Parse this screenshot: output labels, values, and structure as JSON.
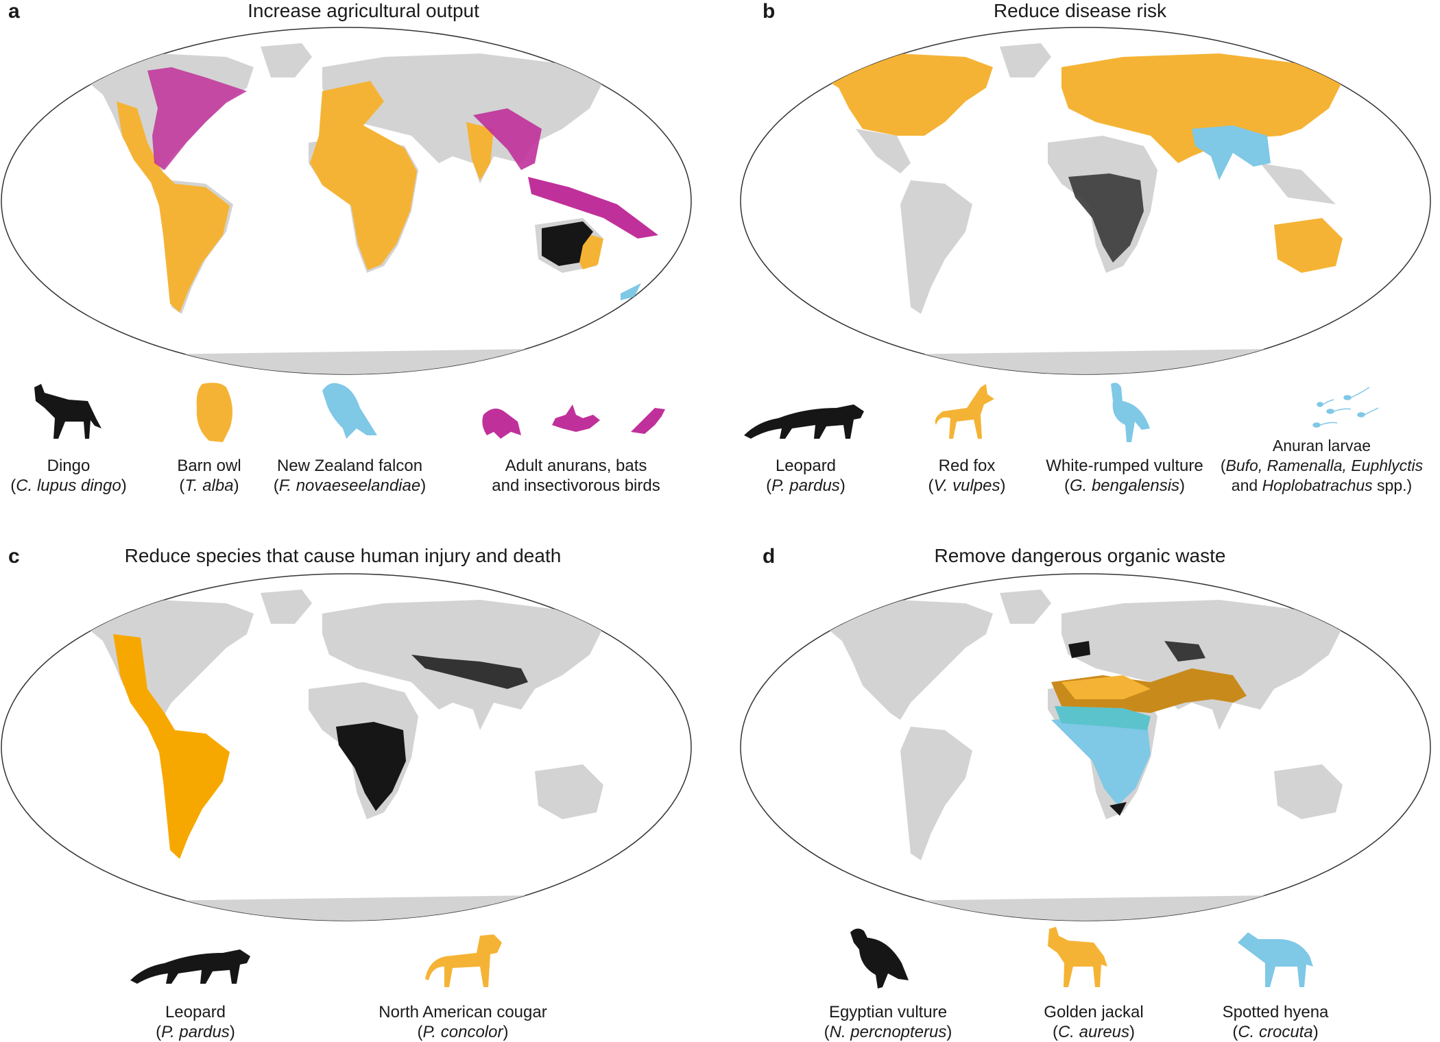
{
  "colors": {
    "land": "#d3d3d3",
    "orange": "#f5b335",
    "magenta": "#c0309a",
    "black": "#161616",
    "blue": "#7fc8e6",
    "darkgold": "#c98a1c",
    "teal": "#5bc3cc"
  },
  "panels": [
    {
      "letter": "a",
      "title": "Increase agricultural output",
      "legend": [
        {
          "icon": "dingo-icon",
          "color": "black",
          "name": "Dingo",
          "sci_pre": "(",
          "sci_it": "C. lupus dingo",
          "sci_post": ")"
        },
        {
          "icon": "owl-icon",
          "color": "orange",
          "name": "Barn owl",
          "sci_pre": "(",
          "sci_it": "T. alba",
          "sci_post": ")"
        },
        {
          "icon": "falcon-icon",
          "color": "blue",
          "name": "New Zealand falcon",
          "sci_pre": "(",
          "sci_it": "F. novaeseelandiae",
          "sci_post": ")"
        },
        {
          "icon": "frog-bat-bird-icon",
          "color": "magenta",
          "name": "Adult anurans, bats",
          "sci_pre": "and insectivorous birds",
          "sci_it": "",
          "sci_post": ""
        }
      ]
    },
    {
      "letter": "b",
      "title": "Reduce disease risk",
      "legend": [
        {
          "icon": "leopard-icon",
          "color": "black",
          "name": "Leopard",
          "sci_pre": "(",
          "sci_it": "P. pardus",
          "sci_post": ")"
        },
        {
          "icon": "fox-icon",
          "color": "orange",
          "name": "Red fox",
          "sci_pre": "(",
          "sci_it": "V. vulpes",
          "sci_post": ")"
        },
        {
          "icon": "vulture-icon",
          "color": "blue",
          "name": "White-rumped vulture",
          "sci_pre": "(",
          "sci_it": "G. bengalensis",
          "sci_post": ")"
        },
        {
          "icon": "tadpole-icon",
          "color": "blue",
          "name": "Anuran larvae",
          "sci_pre": "(",
          "sci_it": "Bufo, Ramenalla, Euphlyctis",
          "sci_post": "",
          "line3_pre": "and ",
          "line3_it": "Hoplobatrachus",
          "line3_post": " spp.)"
        }
      ]
    },
    {
      "letter": "c",
      "title": "Reduce species that cause human injury and death",
      "legend": [
        {
          "icon": "leopard-icon",
          "color": "black",
          "name": "Leopard",
          "sci_pre": "(",
          "sci_it": "P. pardus",
          "sci_post": ")"
        },
        {
          "icon": "cougar-icon",
          "color": "orange",
          "name": "North American cougar",
          "sci_pre": "(",
          "sci_it": "P. concolor",
          "sci_post": ")"
        }
      ]
    },
    {
      "letter": "d",
      "title": "Remove dangerous organic waste",
      "legend": [
        {
          "icon": "egyptian-vulture-icon",
          "color": "black",
          "name": "Egyptian vulture",
          "sci_pre": "(",
          "sci_it": "N. percnopterus",
          "sci_post": ")"
        },
        {
          "icon": "jackal-icon",
          "color": "orange",
          "name": "Golden jackal",
          "sci_pre": "(",
          "sci_it": "C. aureus",
          "sci_post": ")"
        },
        {
          "icon": "hyena-icon",
          "color": "blue",
          "name": "Spotted hyena",
          "sci_pre": "(",
          "sci_it": "C. crocuta",
          "sci_post": ")"
        }
      ]
    }
  ]
}
